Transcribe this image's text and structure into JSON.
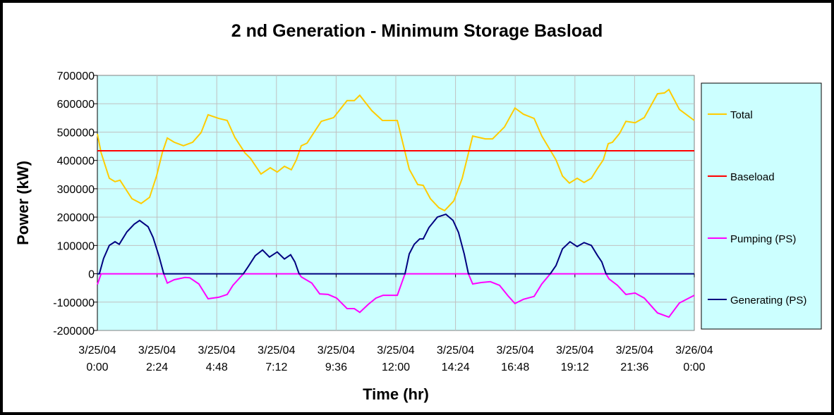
{
  "chart_data": {
    "type": "line",
    "title": "2 nd Generation - Minimum Storage Basload",
    "xlabel": "Time (hr)",
    "ylabel": "Power (kW)",
    "ylim": [
      -200000,
      700000
    ],
    "yticks": [
      700000,
      600000,
      500000,
      400000,
      300000,
      200000,
      100000,
      0,
      -100000,
      -200000
    ],
    "ytick_labels": [
      "700000",
      "600000",
      "500000",
      "400000",
      "300000",
      "200000",
      "100000",
      "0",
      "-100000",
      "-200000"
    ],
    "xlim_hours": [
      0,
      24
    ],
    "xtick_labels": [
      [
        "3/25/04",
        "0:00"
      ],
      [
        "3/25/04",
        "2:24"
      ],
      [
        "3/25/04",
        "4:48"
      ],
      [
        "3/25/04",
        "7:12"
      ],
      [
        "3/25/04",
        "9:36"
      ],
      [
        "3/25/04",
        "12:00"
      ],
      [
        "3/25/04",
        "14:24"
      ],
      [
        "3/25/04",
        "16:48"
      ],
      [
        "3/25/04",
        "19:12"
      ],
      [
        "3/25/04",
        "21:36"
      ],
      [
        "3/26/04",
        "0:00"
      ]
    ],
    "grid": true,
    "legend_position": "right",
    "colors": {
      "plot_bg": "#CCFFFF",
      "grid": "#C0C0C0"
    },
    "series": [
      {
        "name": "Total",
        "color": "#FFCC00",
        "points": [
          [
            0,
            494000
          ],
          [
            0.15,
            427000
          ],
          [
            0.48,
            337000
          ],
          [
            0.71,
            325000
          ],
          [
            0.91,
            330000
          ],
          [
            1.39,
            265000
          ],
          [
            1.76,
            248000
          ],
          [
            2.1,
            270000
          ],
          [
            2.38,
            345000
          ],
          [
            2.61,
            427000
          ],
          [
            2.81,
            479000
          ],
          [
            3.09,
            464000
          ],
          [
            3.46,
            452000
          ],
          [
            3.83,
            464000
          ],
          [
            4.17,
            498000
          ],
          [
            4.45,
            561000
          ],
          [
            4.88,
            548000
          ],
          [
            5.22,
            541000
          ],
          [
            5.53,
            481000
          ],
          [
            5.93,
            427000
          ],
          [
            6.16,
            407000
          ],
          [
            6.58,
            352000
          ],
          [
            6.95,
            374000
          ],
          [
            7.23,
            359000
          ],
          [
            7.52,
            379000
          ],
          [
            7.8,
            367000
          ],
          [
            8.0,
            402000
          ],
          [
            8.2,
            452000
          ],
          [
            8.43,
            461000
          ],
          [
            9.0,
            538000
          ],
          [
            9.5,
            551000
          ],
          [
            10.04,
            611000
          ],
          [
            10.33,
            611000
          ],
          [
            10.55,
            630000
          ],
          [
            11.03,
            576000
          ],
          [
            11.46,
            541000
          ],
          [
            12.06,
            541000
          ],
          [
            12.54,
            369000
          ],
          [
            12.88,
            315000
          ],
          [
            13.1,
            312000
          ],
          [
            13.39,
            265000
          ],
          [
            13.73,
            233000
          ],
          [
            13.96,
            223000
          ],
          [
            14.33,
            257000
          ],
          [
            14.67,
            337000
          ],
          [
            15.09,
            486000
          ],
          [
            15.6,
            476000
          ],
          [
            15.89,
            476000
          ],
          [
            16.37,
            518000
          ],
          [
            16.79,
            585000
          ],
          [
            17.13,
            563000
          ],
          [
            17.56,
            548000
          ],
          [
            17.87,
            486000
          ],
          [
            18.27,
            427000
          ],
          [
            18.44,
            402000
          ],
          [
            18.7,
            345000
          ],
          [
            18.98,
            320000
          ],
          [
            19.29,
            337000
          ],
          [
            19.57,
            322000
          ],
          [
            19.86,
            337000
          ],
          [
            20.11,
            372000
          ],
          [
            20.34,
            402000
          ],
          [
            20.54,
            459000
          ],
          [
            20.71,
            464000
          ],
          [
            21.0,
            496000
          ],
          [
            21.25,
            538000
          ],
          [
            21.62,
            533000
          ],
          [
            21.99,
            551000
          ],
          [
            22.52,
            635000
          ],
          [
            22.8,
            638000
          ],
          [
            22.98,
            650000
          ],
          [
            23.4,
            580000
          ],
          [
            24,
            541000
          ]
        ]
      },
      {
        "name": "Baseload",
        "color": "#FF0000",
        "points": [
          [
            0,
            434000
          ],
          [
            24,
            434000
          ]
        ]
      },
      {
        "name": "Pumping (PS)",
        "color": "#FF00FF",
        "points": [
          [
            0,
            -38000
          ],
          [
            0.15,
            0
          ],
          [
            2.67,
            0
          ],
          [
            2.81,
            -33000
          ],
          [
            3.09,
            -21000
          ],
          [
            3.52,
            -13000
          ],
          [
            3.71,
            -14000
          ],
          [
            4.08,
            -36000
          ],
          [
            4.45,
            -88000
          ],
          [
            4.88,
            -83000
          ],
          [
            5.22,
            -73000
          ],
          [
            5.45,
            -41000
          ],
          [
            5.87,
            0
          ],
          [
            8.11,
            0
          ],
          [
            8.2,
            -11000
          ],
          [
            8.62,
            -33000
          ],
          [
            8.94,
            -71000
          ],
          [
            9.28,
            -73000
          ],
          [
            9.62,
            -86000
          ],
          [
            10.04,
            -123000
          ],
          [
            10.33,
            -123000
          ],
          [
            10.55,
            -136000
          ],
          [
            10.89,
            -108000
          ],
          [
            11.2,
            -86000
          ],
          [
            11.49,
            -76000
          ],
          [
            12.06,
            -76000
          ],
          [
            12.37,
            0
          ],
          [
            14.92,
            0
          ],
          [
            15.09,
            -36000
          ],
          [
            15.43,
            -31000
          ],
          [
            15.8,
            -28000
          ],
          [
            16.17,
            -41000
          ],
          [
            16.51,
            -78000
          ],
          [
            16.79,
            -105000
          ],
          [
            17.13,
            -90000
          ],
          [
            17.56,
            -80000
          ],
          [
            17.87,
            -36000
          ],
          [
            18.21,
            0
          ],
          [
            20.45,
            0
          ],
          [
            20.57,
            -18000
          ],
          [
            20.91,
            -41000
          ],
          [
            21.25,
            -73000
          ],
          [
            21.62,
            -68000
          ],
          [
            21.99,
            -86000
          ],
          [
            22.52,
            -138000
          ],
          [
            22.98,
            -153000
          ],
          [
            23.4,
            -103000
          ],
          [
            24,
            -76000
          ]
        ]
      },
      {
        "name": "Generating (PS)",
        "color": "#000080",
        "points": [
          [
            0,
            0
          ],
          [
            0.08,
            0
          ],
          [
            0.25,
            54000
          ],
          [
            0.48,
            100000
          ],
          [
            0.71,
            113000
          ],
          [
            0.88,
            104000
          ],
          [
            1.19,
            148000
          ],
          [
            1.48,
            175000
          ],
          [
            1.7,
            188000
          ],
          [
            2.04,
            166000
          ],
          [
            2.24,
            128000
          ],
          [
            2.47,
            64000
          ],
          [
            2.67,
            0
          ],
          [
            5.87,
            0
          ],
          [
            6.07,
            26000
          ],
          [
            6.35,
            64000
          ],
          [
            6.64,
            84000
          ],
          [
            6.92,
            59000
          ],
          [
            7.23,
            77000
          ],
          [
            7.52,
            52000
          ],
          [
            7.77,
            67000
          ],
          [
            7.94,
            42000
          ],
          [
            8.11,
            0
          ],
          [
            12.37,
            0
          ],
          [
            12.54,
            70000
          ],
          [
            12.74,
            104000
          ],
          [
            12.96,
            123000
          ],
          [
            13.1,
            123000
          ],
          [
            13.33,
            163000
          ],
          [
            13.67,
            200000
          ],
          [
            14.01,
            210000
          ],
          [
            14.3,
            188000
          ],
          [
            14.52,
            146000
          ],
          [
            14.75,
            70000
          ],
          [
            14.92,
            0
          ],
          [
            18.21,
            0
          ],
          [
            18.44,
            29000
          ],
          [
            18.7,
            88000
          ],
          [
            19.0,
            113000
          ],
          [
            19.29,
            96000
          ],
          [
            19.57,
            110000
          ],
          [
            19.86,
            100000
          ],
          [
            20.11,
            64000
          ],
          [
            20.28,
            42000
          ],
          [
            20.45,
            0
          ],
          [
            24,
            0
          ]
        ]
      }
    ]
  }
}
